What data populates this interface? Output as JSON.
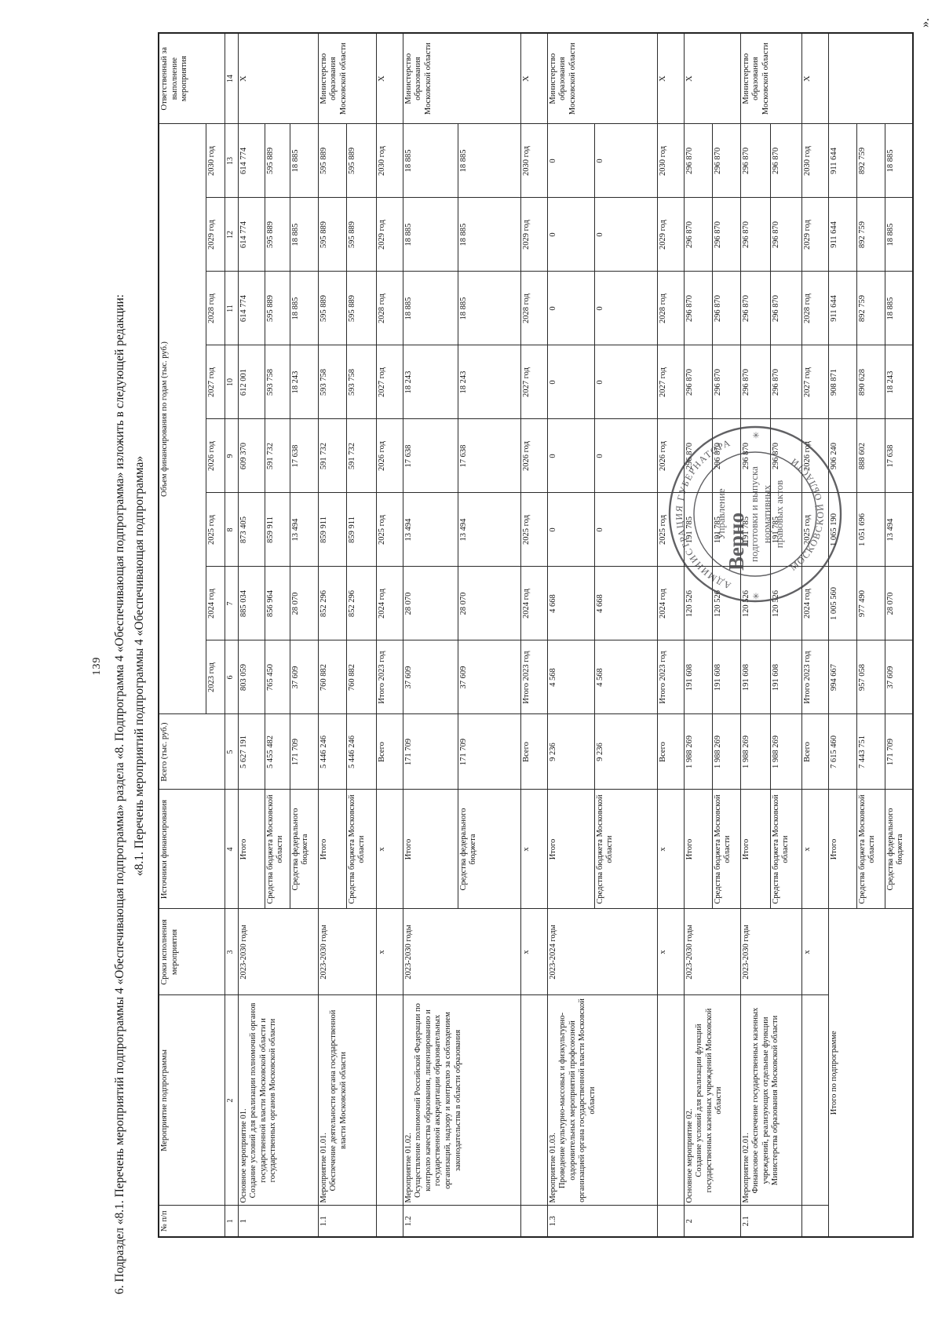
{
  "page": {
    "number": "139",
    "closing_quote": "»."
  },
  "heading": {
    "paragraph": "6. Подраздел «8.1. Перечень мероприятий подпрограммы 4 «Обеспечивающая подпрограмма» раздела «8. Подпрограмма 4 «Обеспечивающая подпрограмма» изложить в следующей редакции:",
    "subtitle": "«8.1. Перечень мероприятий подпрограммы 4 «Обеспечивающая подпрограмма»"
  },
  "table": {
    "header": {
      "col_num": "№ п/п",
      "col_name": "Мероприятие подпрограммы",
      "col_period": "Сроки исполнения мероприятия",
      "col_source": "Источники финансирования",
      "col_total": "Всего (тыс. руб.)",
      "col_years_group": "Объем финансирования по годам (тыс. руб.)",
      "col_responsible": "Ответственный за выполнение мероприятия"
    },
    "years": [
      "2023 год",
      "2024 год",
      "2025 год",
      "2026 год",
      "2027 год",
      "2028 год",
      "2029 год",
      "2030 год"
    ],
    "col_numbers": [
      "1",
      "2",
      "3",
      "4",
      "5",
      "6",
      "7",
      "8",
      "9",
      "10",
      "11",
      "12",
      "13",
      "14"
    ],
    "mini_header": {
      "period": "х",
      "source": "х",
      "total": "Всего",
      "years": [
        "Итого 2023 год",
        "2024 год",
        "2025 год",
        "2026 год",
        "2027 год",
        "2028 год",
        "2029 год",
        "2030 год"
      ],
      "responsible": "X"
    },
    "blocks": [
      {
        "num": "1",
        "name_title": "Основное мероприятие 01.",
        "name_body": "Создание условий для реализации полномочий органов государственной власти Московской области и государственных органов Московской области",
        "period": "2023-2030 годы",
        "responsible": "X",
        "mini_after": false,
        "rows": [
          {
            "source": "Итого",
            "values": [
              "5 627 191",
              "803 059",
              "885 034",
              "873 405",
              "609 370",
              "612 001",
              "614 774",
              "614 774",
              "614 774"
            ]
          },
          {
            "source": "Средства бюджета Московской области",
            "values": [
              "5 455 482",
              "765 450",
              "856 964",
              "859 911",
              "591 732",
              "593 758",
              "595 889",
              "595 889",
              "595 889"
            ]
          },
          {
            "source": "Средства федерального бюджета",
            "values": [
              "171 709",
              "37 609",
              "28 070",
              "13 494",
              "17 638",
              "18 243",
              "18 885",
              "18 885",
              "18 885"
            ]
          }
        ]
      },
      {
        "num": "1.1",
        "name_title": "Мероприятие 01.01.",
        "name_body": "Обеспечение деятельности органа государственной власти Московской области",
        "period": "2023-2030 годы",
        "responsible": "Министерство образования Московской области",
        "mini_after": true,
        "rows": [
          {
            "source": "Итого",
            "values": [
              "5 446 246",
              "760 882",
              "852 296",
              "859 911",
              "591 732",
              "593 758",
              "595 889",
              "595 889",
              "595 889"
            ]
          },
          {
            "source": "Средства бюджета Московской области",
            "values": [
              "5 446 246",
              "760 882",
              "852 296",
              "859 911",
              "591 732",
              "593 758",
              "595 889",
              "595 889",
              "595 889"
            ]
          }
        ]
      },
      {
        "num": "1.2",
        "name_title": "Мероприятие 01.02.",
        "name_body": "Осуществление полномочий Российской Федерации по контролю качества образования, лицензированию и государственной аккредитации образовательных организаций, надзору и контролю за соблюдением законодательства в области образования",
        "period": "2023-2030 годы",
        "responsible": "Министерство образования Московской области",
        "mini_after": true,
        "rows": [
          {
            "source": "Итого",
            "values": [
              "171 709",
              "37 609",
              "28 070",
              "13 494",
              "17 638",
              "18 243",
              "18 885",
              "18 885",
              "18 885"
            ]
          },
          {
            "source": "Средства федерального бюджета",
            "values": [
              "171 709",
              "37 609",
              "28 070",
              "13 494",
              "17 638",
              "18 243",
              "18 885",
              "18 885",
              "18 885"
            ]
          }
        ]
      },
      {
        "num": "1.3",
        "name_title": "Мероприятие 01.03.",
        "name_body": "Проведение культурно-массовых и физкультурно-оздоровительных мероприятий профсоюзной организацией органа государственной власти Московской области",
        "period": "2023-2024 годы",
        "responsible": "Министерство образования Московской области",
        "mini_after": true,
        "rows": [
          {
            "source": "Итого",
            "values": [
              "9 236",
              "4 568",
              "4 668",
              "0",
              "0",
              "0",
              "0",
              "0",
              "0"
            ]
          },
          {
            "source": "Средства бюджета Московской области",
            "values": [
              "9 236",
              "4 568",
              "4 668",
              "0",
              "0",
              "0",
              "0",
              "0",
              "0"
            ]
          }
        ]
      },
      {
        "num": "2",
        "name_title": "Основное мероприятие 02.",
        "name_body": "Создание условий для реализации функций государственных казенных учреждений Московской области",
        "period": "2023-2030 годы",
        "responsible": "X",
        "mini_after": false,
        "rows": [
          {
            "source": "Итого",
            "values": [
              "1 988 269",
              "191 608",
              "120 526",
              "191 785",
              "296 870",
              "296 870",
              "296 870",
              "296 870",
              "296 870"
            ]
          },
          {
            "source": "Средства бюджета Московской области",
            "values": [
              "1 988 269",
              "191 608",
              "120 526",
              "191 785",
              "296 870",
              "296 870",
              "296 870",
              "296 870",
              "296 870"
            ]
          }
        ]
      },
      {
        "num": "2.1",
        "name_title": "Мероприятие 02.01.",
        "name_body": "Финансовое обеспечение государственных казенных учреждений, реализующих отдельные функции Министерства образования Московской области",
        "period": "2023-2030 годы",
        "responsible": "Министерство образования Московской области",
        "mini_after": true,
        "rows": [
          {
            "source": "Итого",
            "values": [
              "1 988 269",
              "191 608",
              "120 526",
              "191 785",
              "296 870",
              "296 870",
              "296 870",
              "296 870",
              "296 870"
            ]
          },
          {
            "source": "Средства бюджета Московской области",
            "values": [
              "1 988 269",
              "191 608",
              "120 526",
              "191 785",
              "296 870",
              "296 870",
              "296 870",
              "296 870",
              "296 870"
            ]
          }
        ]
      }
    ],
    "total_block": {
      "label": "Итого по подпрограмме",
      "rows": [
        {
          "source": "Итого",
          "values": [
            "7 615 460",
            "994 667",
            "1 005 560",
            "1 065 190",
            "906 240",
            "908 871",
            "911 644",
            "911 644",
            "911 644"
          ]
        },
        {
          "source": "Средства бюджета Московской области",
          "values": [
            "7 443 751",
            "957 058",
            "977 490",
            "1 051 696",
            "888 602",
            "890 628",
            "892 759",
            "892 759",
            "892 759"
          ]
        },
        {
          "source": "Средства федерального бюджета",
          "values": [
            "171 709",
            "37 609",
            "28 070",
            "13 494",
            "17 638",
            "18 243",
            "18 885",
            "18 885",
            "18 885"
          ]
        }
      ]
    }
  },
  "stamp": {
    "ring_top": "АДМИНИСТРАЦИЯ ГУБЕРНАТОРА",
    "ring_bottom": "МОСКОВСКОЙ ОБЛАСТИ",
    "star_left": "✳",
    "star_right": "✳",
    "line1": "Управление",
    "line2": "подготовки и выпуска",
    "line3": "нормативных",
    "line4": "правовых актов",
    "verno": "Верно"
  },
  "ink_color": "#3f3f43"
}
